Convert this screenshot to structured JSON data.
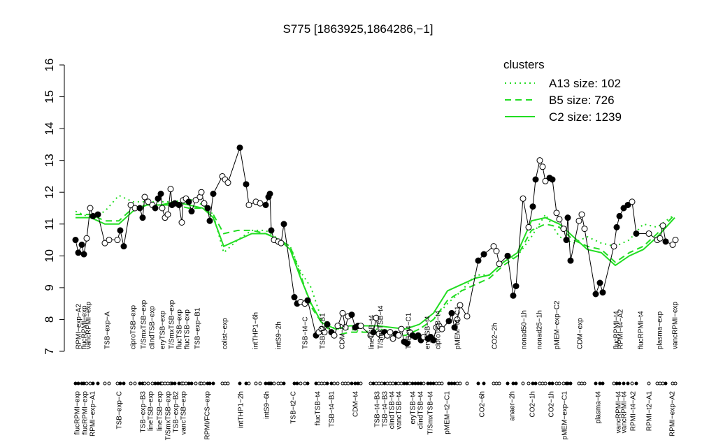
{
  "chart_data": {
    "type": "line",
    "title": "S775 [1863925,1864286,−1]",
    "xlim": [
      0,
      875
    ],
    "ylim": [
      7,
      16
    ],
    "yticks": [
      7,
      8,
      9,
      10,
      11,
      12,
      13,
      14,
      15,
      16
    ],
    "legend_title": "clusters",
    "legend_color": "#22dd22",
    "samples": {
      "x": [
        8,
        12,
        17,
        20,
        24,
        29,
        33,
        40,
        50,
        56,
        68,
        72,
        77,
        87,
        93,
        100,
        104,
        107,
        112,
        118,
        122,
        126,
        130,
        132,
        136,
        140,
        144,
        146,
        150,
        156,
        160,
        162,
        166,
        170,
        174,
        180,
        186,
        188,
        192,
        197,
        200,
        205,
        218,
        222,
        226,
        243,
        252,
        256,
        266,
        272,
        280,
        284,
        286,
        288,
        292,
        298,
        302,
        306,
        321,
        325,
        330,
        336,
        340,
        352,
        356,
        360,
        364,
        368,
        374,
        378,
        383,
        390,
        394,
        398,
        403,
        408,
        412,
        416,
        430,
        434,
        438,
        442,
        446,
        450,
        454,
        458,
        462,
        466,
        470,
        474,
        478,
        482,
        486,
        490,
        494,
        498,
        502,
        506,
        512,
        516,
        520,
        524,
        528,
        532,
        542,
        546,
        550,
        554,
        558,
        568,
        584,
        592,
        606,
        610,
        614,
        626,
        634,
        638,
        648,
        656,
        662,
        666,
        672,
        676,
        680,
        686,
        690,
        696,
        700,
        706,
        710,
        712,
        716,
        728,
        732,
        736,
        752,
        758,
        762,
        778,
        782,
        786,
        792,
        798,
        804,
        810,
        828,
        840,
        844,
        848,
        852,
        862,
        866
      ],
      "values": [
        10.5,
        10.1,
        10.35,
        10.05,
        10.55,
        11.5,
        11.25,
        11.3,
        10.4,
        10.5,
        10.5,
        10.8,
        10.3,
        11.6,
        11.5,
        11.5,
        11.2,
        11.85,
        11.7,
        11.6,
        11.5,
        11.8,
        11.95,
        11.5,
        11.2,
        11.3,
        12.1,
        11.6,
        11.65,
        11.6,
        11.05,
        11.75,
        11.8,
        11.7,
        11.4,
        11.75,
        11.85,
        12.0,
        11.65,
        11.5,
        11.1,
        11.95,
        12.5,
        12.4,
        12.3,
        13.4,
        12.25,
        11.6,
        11.7,
        11.65,
        11.6,
        11.85,
        11.95,
        10.8,
        10.5,
        10.45,
        10.4,
        11.0,
        8.7,
        8.5,
        8.55,
        8.5,
        8.6,
        7.5,
        7.6,
        7.7,
        7.6,
        7.85,
        7.6,
        7.5,
        7.8,
        8.2,
        7.75,
        8.1,
        8.15,
        7.75,
        7.8,
        7.8,
        7.5,
        7.6,
        8.05,
        7.55,
        7.45,
        7.6,
        7.5,
        7.6,
        7.4,
        7.55,
        7.5,
        7.7,
        7.3,
        7.25,
        7.6,
        7.5,
        7.45,
        7.5,
        7.35,
        7.45,
        7.4,
        7.45,
        7.35,
        7.75,
        7.8,
        7.7,
        7.95,
        8.2,
        7.75,
        8.0,
        8.45,
        8.1,
        9.85,
        10.05,
        10.3,
        10.15,
        9.75,
        10.0,
        8.75,
        9.05,
        11.8,
        10.9,
        11.55,
        12.4,
        13.0,
        12.8,
        12.35,
        12.45,
        12.4,
        11.35,
        11.15,
        10.85,
        10.5,
        11.2,
        9.85,
        11.1,
        11.3,
        10.85,
        8.8,
        9.15,
        8.85,
        10.3,
        10.9,
        11.25,
        11.5,
        11.6,
        11.7,
        10.7,
        10.7,
        10.5,
        10.55,
        10.95,
        10.45,
        10.35,
        10.5
      ],
      "fills": "bbbbwwbbwwwbbwwbbwwwbbbwwwwbbbwwwbbwwwwbbbwwwbbwwwbbbbwwwbbbwwbbwwwbbwwwwwbbbwwbwwwbwwwbwwbbwbbbbwbbbwwwbbbwwwbbwwwbbbwwbbwwwbbwwwbbbwwwbbbwbbbbwbwwwwbw"
    },
    "series": [
      {
        "name": "A13 size: 102",
        "style": "dotted",
        "x": [
          8,
          30,
          50,
          70,
          90,
          110,
          130,
          150,
          170,
          190,
          205,
          220,
          240,
          260,
          280,
          300,
          315,
          330,
          345,
          360,
          380,
          400,
          420,
          440,
          460,
          480,
          500,
          520,
          540,
          560,
          580,
          600,
          620,
          640,
          660,
          680,
          700,
          720,
          740,
          760,
          780,
          800,
          820,
          840,
          865
        ],
        "values": [
          11.4,
          11.2,
          11.4,
          11.9,
          11.7,
          11.7,
          11.7,
          11.7,
          11.8,
          11.6,
          11.3,
          10.1,
          10.5,
          10.8,
          10.8,
          10.5,
          10.3,
          9.5,
          9.0,
          8.0,
          7.7,
          7.7,
          7.6,
          7.7,
          7.65,
          7.5,
          7.7,
          8.0,
          8.5,
          8.9,
          9.4,
          9.4,
          9.8,
          10.0,
          10.6,
          11.3,
          10.6,
          10.4,
          10.6,
          10.4,
          10.3,
          10.5,
          11.0,
          10.9,
          11.3
        ]
      },
      {
        "name": "B5 size: 726",
        "style": "dashed",
        "x": [
          8,
          30,
          50,
          70,
          90,
          110,
          130,
          150,
          170,
          190,
          205,
          220,
          240,
          260,
          280,
          300,
          315,
          330,
          345,
          360,
          380,
          400,
          420,
          440,
          460,
          480,
          500,
          520,
          540,
          560,
          580,
          600,
          620,
          640,
          660,
          680,
          700,
          720,
          740,
          760,
          780,
          800,
          820,
          840,
          865
        ],
        "values": [
          11.3,
          11.3,
          11.1,
          11.1,
          11.5,
          11.6,
          11.6,
          11.6,
          11.5,
          11.5,
          11.3,
          10.7,
          10.8,
          10.8,
          10.7,
          10.5,
          10.3,
          9.4,
          8.4,
          7.9,
          7.5,
          7.6,
          7.6,
          7.6,
          7.5,
          7.5,
          7.7,
          8.0,
          8.6,
          8.9,
          9.1,
          9.3,
          9.7,
          10.0,
          10.8,
          11.0,
          10.9,
          10.5,
          10.3,
          10.2,
          9.8,
          10.1,
          10.3,
          10.7,
          11.3
        ]
      },
      {
        "name": "C2 size: 1239",
        "style": "solid",
        "x": [
          8,
          30,
          50,
          70,
          90,
          110,
          130,
          150,
          170,
          190,
          205,
          220,
          240,
          260,
          280,
          300,
          315,
          330,
          345,
          360,
          380,
          400,
          420,
          440,
          460,
          480,
          500,
          520,
          540,
          560,
          580,
          600,
          620,
          640,
          660,
          680,
          700,
          720,
          740,
          760,
          780,
          800,
          820,
          840,
          865
        ],
        "values": [
          11.2,
          11.2,
          11.0,
          11.0,
          11.4,
          11.6,
          11.6,
          11.7,
          11.6,
          11.5,
          11.2,
          10.3,
          10.5,
          10.7,
          10.7,
          10.5,
          10.2,
          9.3,
          8.5,
          7.9,
          7.7,
          7.8,
          7.8,
          7.8,
          7.75,
          7.7,
          7.85,
          8.2,
          8.9,
          9.1,
          9.3,
          9.4,
          9.8,
          10.1,
          11.1,
          11.2,
          11.0,
          10.6,
          10.2,
          10.1,
          9.7,
          10.0,
          10.2,
          10.6,
          11.2
        ]
      }
    ],
    "top_labels": {
      "x": [
        13,
        21,
        27,
        54,
        91,
        106,
        118,
        133,
        146,
        157,
        168,
        183,
        222,
        266,
        299,
        337,
        362,
        390,
        432,
        445,
        485,
        512,
        527,
        555,
        608,
        650,
        672,
        697,
        730,
        782,
        788,
        817,
        844,
        866
      ],
      "labels": [
        "RPMI−exp−A2",
        "flucRPMI−exp",
        "vancRPMI−exp",
        "TSB−exp−A",
        "ciproTSB−exp",
        "T/SmxTSB−exp",
        "clindTSB−exp",
        "eryTSB−exp",
        "T/SmxTSB−exp",
        "flucTSB−exp",
        "flucTSB−exp",
        "TSB−exp−B1",
        "colist−exp",
        "intTHP1−6h",
        "intS9−2h",
        "TSB−t4−C",
        "TSB−t2−B1",
        "CDM−t2",
        "lineTSB−t4",
        "T/SmxTSB−t4",
        "TSB−t4−C1",
        "eryTSB−t4",
        "ciproTSB−t4",
        "pMEM−t4−C1",
        "CO2−2h",
        "nonad50−1h",
        "nonad25−1h",
        "pMEM−exp−C2",
        "CDM−exp",
        "flucRPMI−t4",
        "RPMI−t4−A2",
        "flucRPMI−t4",
        "plasma−exp",
        "vancRPMI−exp"
      ]
    },
    "bottom_labels": {
      "x": [
        11,
        22,
        33,
        71,
        105,
        116,
        129,
        141,
        152,
        163,
        197,
        245,
        282,
        320,
        355,
        375,
        409,
        440,
        451,
        461,
        471,
        491,
        502,
        516,
        540,
        590,
        633,
        662,
        689,
        708,
        756,
        785,
        793,
        806,
        829,
        862
      ],
      "labels": [
        "flucRPMI−exp",
        "flucRPMI−exp",
        "RPMI−exp−A1",
        "TSB−exp−C",
        "TSB−exp−B3",
        "lineTSB−exp",
        "lineTSB−exp",
        "T/SmxTSB−exp",
        "TSB−exp−B2",
        "vancTSB−exp",
        "RPMI/FCS−exp",
        "intTHP1−2h",
        "intS9−6h",
        "TSB−t2−C",
        "flucTSB−t4",
        "TSB−t4−B1",
        "CDM−t4",
        "TSB−t4−B3",
        "TSB−t4−B3",
        "clindTSB−t4",
        "vancTSB−t4",
        "eryTSB−t4",
        "clindTSB−t4",
        "T/SmxTSB−t4",
        "pMEM−t2−C1",
        "CO2−6h",
        "anaer−2h",
        "CO2−1h",
        "CO2−1h",
        "pMEM−exp−C1",
        "plasma−t4",
        "vancRPMI−t4",
        "vancRPMI−t4",
        "RPMI−t4−A2",
        "RPMI−t2−A1",
        "RPMI−exp−A2"
      ]
    }
  }
}
